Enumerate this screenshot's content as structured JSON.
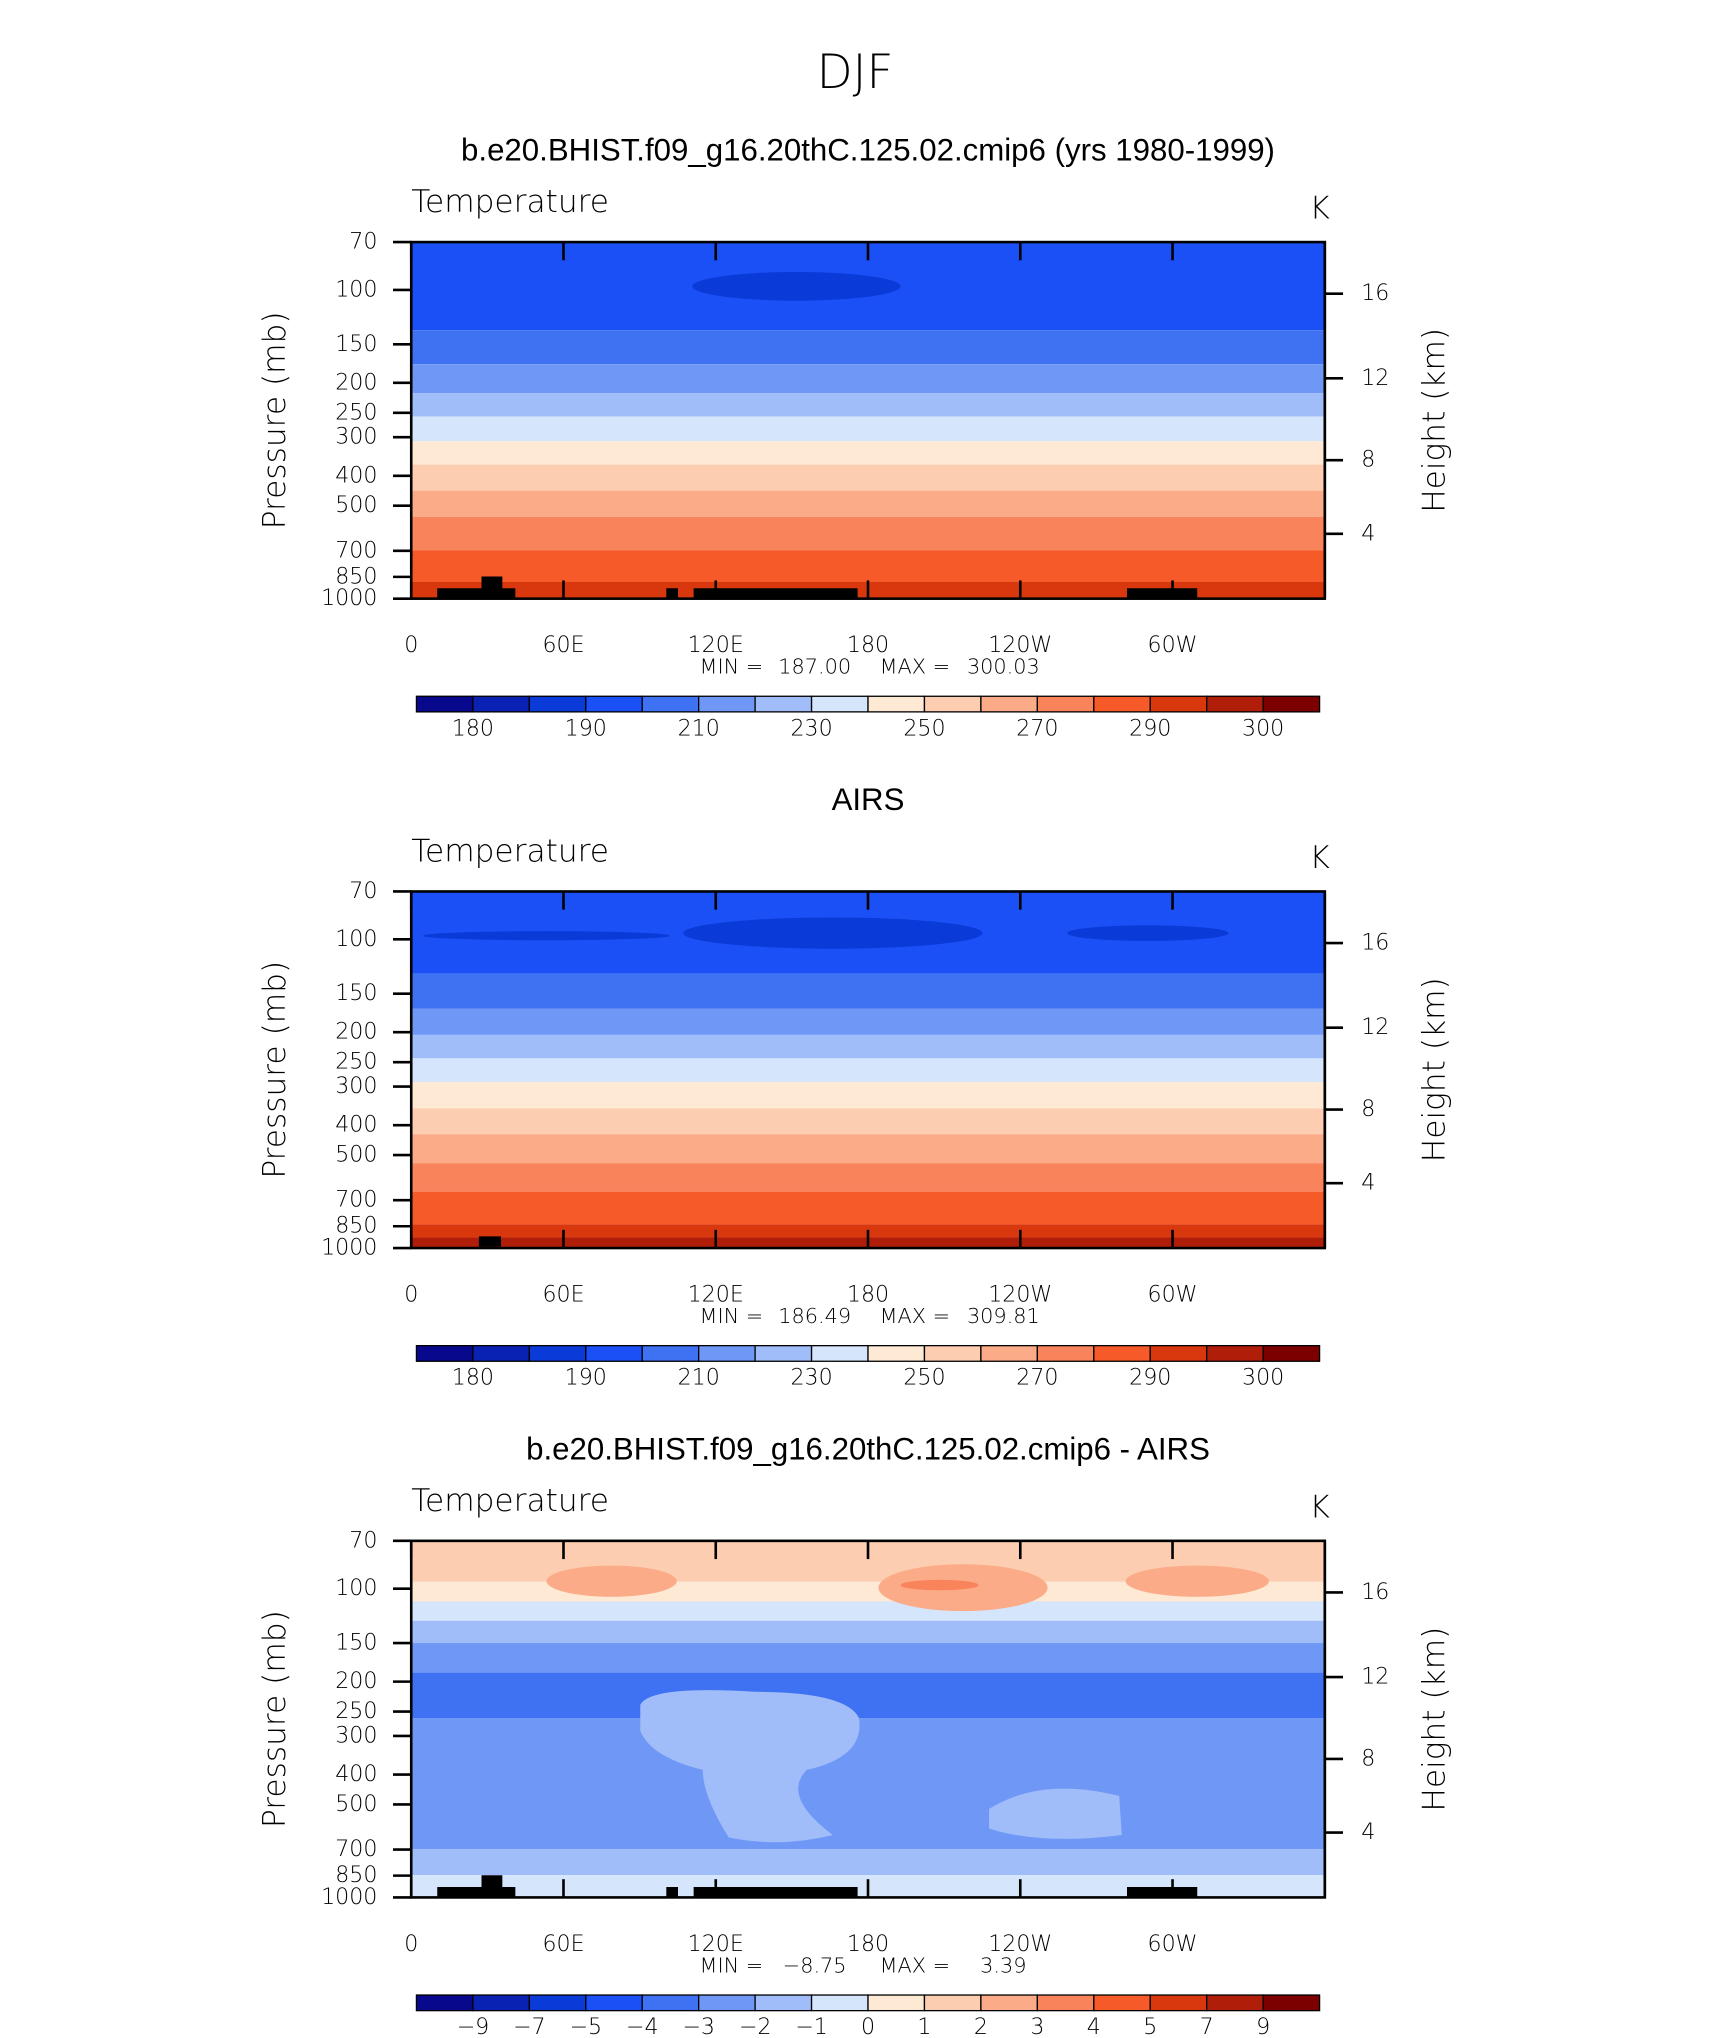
{
  "suptitle": "DJF",
  "chart_data": [
    {
      "type": "contour",
      "title": "b.e20.BHIST.f09_g16.20thC.125.02.cmip6 (yrs 1980-1999)",
      "left_string": "Temperature",
      "right_string": "K",
      "ylabel": "Pressure (mb)",
      "y2label": "Height (km)",
      "xlim": [
        0,
        360
      ],
      "xticks": [
        0,
        {
          "value": 60,
          "label": "60E"
        },
        {
          "value": 120,
          "label": "120E"
        },
        180,
        {
          "value": 240,
          "label": "120W"
        },
        {
          "value": 300,
          "label": "60W"
        }
      ],
      "ylim": [
        1000,
        70
      ],
      "log_y": true,
      "yticks": [
        70,
        100,
        150,
        200,
        250,
        300,
        400,
        500,
        700,
        850,
        1000
      ],
      "y2lim": [
        0.11,
        18.44
      ],
      "y2ticks": [
        4,
        8,
        12,
        16
      ],
      "bands": {
        "pressure": [
          70,
          135,
          174,
          216,
          257,
          309,
          368,
          447,
          543,
          698,
          883,
          1000
        ],
        "values": [
          195,
          205,
          215,
          225,
          235,
          245,
          255,
          265,
          275,
          285,
          292
        ]
      },
      "min_prefix": "MIN  =",
      "min": {
        "value": 187.0,
        "label": "187.00"
      },
      "max_prefix": "MAX  =",
      "max": {
        "value": 300.03,
        "label": "300.03"
      },
      "colorbar": {
        "label_stride": 2,
        "levels": [
          180,
          185,
          190,
          200,
          210,
          220,
          230,
          240,
          250,
          260,
          270,
          280,
          290,
          295,
          300
        ],
        "colors": [
          "#08088c",
          "#0a22b4",
          "#0a3ad8",
          "#1a50f5",
          "#3f72f2",
          "#6f98f6",
          "#a0bcf9",
          "#d4e5fc",
          "#fde9d4",
          "#fccdb0",
          "#fbab87",
          "#f9835a",
          "#f55a28",
          "#d9380f",
          "#b01e0a",
          "#7d0000"
        ]
      }
    },
    {
      "type": "contour",
      "title": "AIRS",
      "left_string": "Temperature",
      "right_string": "K",
      "ylabel": "Pressure (mb)",
      "y2label": "Height (km)",
      "xlim": [
        0,
        360
      ],
      "xticks": [
        0,
        {
          "value": 60,
          "label": "60E"
        },
        {
          "value": 120,
          "label": "120E"
        },
        180,
        {
          "value": 240,
          "label": "120W"
        },
        {
          "value": 300,
          "label": "60W"
        }
      ],
      "ylim": [
        1000,
        70
      ],
      "log_y": true,
      "yticks": [
        70,
        100,
        150,
        200,
        250,
        300,
        400,
        500,
        700,
        850,
        1000
      ],
      "y2lim": [
        0.11,
        18.44
      ],
      "y2ticks": [
        4,
        8,
        12,
        16
      ],
      "bands": {
        "pressure": [
          70,
          129,
          168,
          204,
          243,
          290,
          353,
          428,
          531,
          657,
          838,
          924,
          1000
        ],
        "values": [
          195,
          205,
          215,
          225,
          235,
          245,
          255,
          265,
          275,
          285,
          292,
          297
        ]
      },
      "min_prefix": "MIN  =",
      "min": {
        "value": 186.49,
        "label": "186.49"
      },
      "max_prefix": "MAX  =",
      "max": {
        "value": 309.81,
        "label": "309.81"
      },
      "colorbar": {
        "label_stride": 2,
        "levels": [
          180,
          185,
          190,
          200,
          210,
          220,
          230,
          240,
          250,
          260,
          270,
          280,
          290,
          295,
          300
        ],
        "colors": [
          "#08088c",
          "#0a22b4",
          "#0a3ad8",
          "#1a50f5",
          "#3f72f2",
          "#6f98f6",
          "#a0bcf9",
          "#d4e5fc",
          "#fde9d4",
          "#fccdb0",
          "#fbab87",
          "#f9835a",
          "#f55a28",
          "#d9380f",
          "#b01e0a",
          "#7d0000"
        ]
      }
    },
    {
      "type": "contour",
      "title": "b.e20.BHIST.f09_g16.20thC.125.02.cmip6 - AIRS",
      "left_string": "Temperature",
      "right_string": "K",
      "ylabel": "Pressure (mb)",
      "y2label": "Height (km)",
      "xlim": [
        0,
        360
      ],
      "xticks": [
        0,
        {
          "value": 60,
          "label": "60E"
        },
        {
          "value": 120,
          "label": "120E"
        },
        180,
        {
          "value": 240,
          "label": "120W"
        },
        {
          "value": 300,
          "label": "60W"
        }
      ],
      "ylim": [
        1000,
        70
      ],
      "log_y": true,
      "yticks": [
        70,
        100,
        150,
        200,
        250,
        300,
        400,
        500,
        700,
        850,
        1000
      ],
      "y2lim": [
        0.11,
        18.44
      ],
      "y2ticks": [
        4,
        8,
        12,
        16
      ],
      "bands": {
        "pressure": [
          70,
          95,
          110,
          127,
          150,
          187,
          263,
          697,
          847,
          1000
        ],
        "values": [
          1.5,
          0.5,
          -0.5,
          -1.5,
          -2.5,
          -3.5,
          -2.5,
          -1.5,
          -0.5
        ]
      },
      "min_prefix": "MIN  =",
      "min": {
        "value": -8.75,
        "label": "−8.75"
      },
      "max_prefix": "MAX  =",
      "max": {
        "value": 3.39,
        "label": "3.39"
      },
      "colorbar": {
        "label_stride": 1,
        "levels": [
          {
            "value": -9,
            "label": "−9"
          },
          {
            "value": -7,
            "label": "−7"
          },
          {
            "value": -5,
            "label": "−5"
          },
          {
            "value": -4,
            "label": "−4"
          },
          {
            "value": -3,
            "label": "−3"
          },
          {
            "value": -2,
            "label": "−2"
          },
          {
            "value": -1,
            "label": "−1"
          },
          0,
          1,
          2,
          3,
          4,
          5,
          7,
          9
        ],
        "colors": [
          "#08088c",
          "#0a22b4",
          "#0a3ad8",
          "#1a50f5",
          "#3f72f2",
          "#6f98f6",
          "#a0bcf9",
          "#d4e5fc",
          "#fde9d4",
          "#fccdb0",
          "#fbab87",
          "#f9835a",
          "#f55a28",
          "#d9380f",
          "#b01e0a",
          "#7d0000"
        ]
      }
    }
  ]
}
